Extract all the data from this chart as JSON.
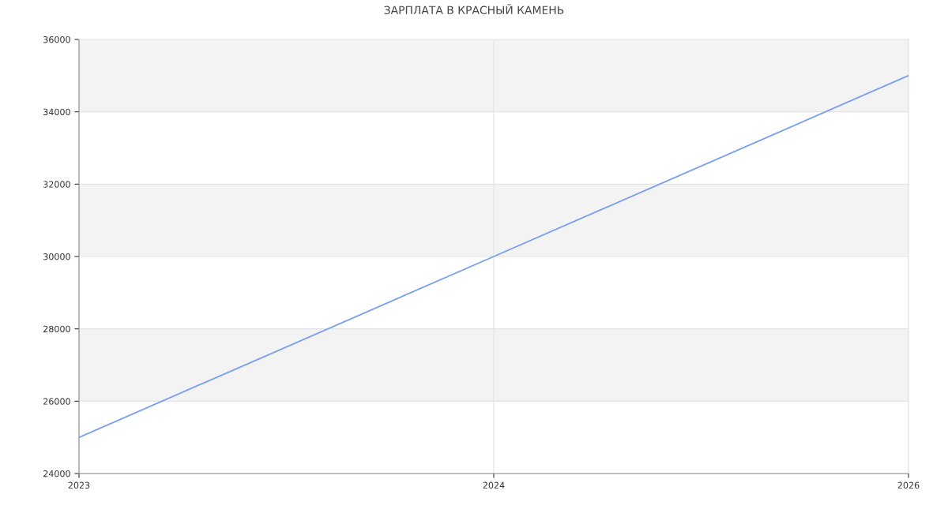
{
  "chart_data": {
    "type": "line",
    "title": "ЗАРПЛАТА В КРАСНЫЙ КАМЕНЬ",
    "categories": [
      "2023",
      "2024",
      "2026"
    ],
    "series": [
      {
        "color": "#779ef0",
        "values": [
          25000,
          30000,
          35000
        ]
      }
    ],
    "ylim": [
      24000,
      36000
    ],
    "yticks": [
      24000,
      26000,
      28000,
      30000,
      32000,
      34000,
      36000
    ],
    "bands": [
      {
        "axis": "y",
        "from": 26000,
        "to": 28000,
        "color": "#f3f3f3"
      },
      {
        "axis": "y",
        "from": 30000,
        "to": 32000,
        "color": "#f3f3f3"
      },
      {
        "axis": "y",
        "from": 34000,
        "to": 36000,
        "color": "#f3f3f3"
      }
    ],
    "grid": true,
    "marker": "none",
    "line_style": "solid"
  }
}
